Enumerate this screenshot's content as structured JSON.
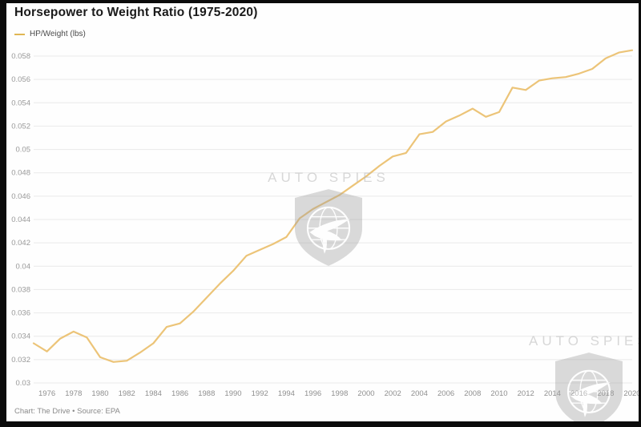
{
  "header": {
    "title": "Horsepower to Weight Ratio (1975-2020)",
    "legend": [
      {
        "label": "HP/Weight (lbs)",
        "color": "#e0b653"
      }
    ]
  },
  "chart_data": {
    "type": "line",
    "title": "Horsepower to Weight Ratio (1975-2020)",
    "xlabel": "",
    "ylabel": "",
    "grid": "horizontal",
    "legend_position": "top-left",
    "xlim": [
      1975,
      2020
    ],
    "ylim": [
      0.03,
      0.058
    ],
    "x_ticks": [
      1976,
      1978,
      1980,
      1982,
      1984,
      1986,
      1988,
      1990,
      1992,
      1994,
      1996,
      1998,
      2000,
      2002,
      2004,
      2006,
      2008,
      2010,
      2012,
      2014,
      2016,
      2018,
      2020
    ],
    "y_ticks": [
      {
        "label": "0.058",
        "value": 0.058
      },
      {
        "label": "0.056",
        "value": 0.056
      },
      {
        "label": "0.054",
        "value": 0.054
      },
      {
        "label": "0.052",
        "value": 0.052
      },
      {
        "label": "0.05",
        "value": 0.05
      },
      {
        "label": "0.048",
        "value": 0.048
      },
      {
        "label": "0.046",
        "value": 0.046
      },
      {
        "label": "0.044",
        "value": 0.044
      },
      {
        "label": "0.042",
        "value": 0.042
      },
      {
        "label": "0.04",
        "value": 0.04
      },
      {
        "label": "0.038",
        "value": 0.038
      },
      {
        "label": "0.036",
        "value": 0.036
      },
      {
        "label": "0.034",
        "value": 0.034
      },
      {
        "label": "0.032",
        "value": 0.032
      },
      {
        "label": "0.03",
        "value": 0.03
      }
    ],
    "series": [
      {
        "name": "HP/Weight (lbs)",
        "color": "#ecc478",
        "x": [
          1975,
          1976,
          1977,
          1978,
          1979,
          1980,
          1981,
          1982,
          1983,
          1984,
          1985,
          1986,
          1987,
          1988,
          1989,
          1990,
          1991,
          1992,
          1993,
          1994,
          1995,
          1996,
          1997,
          1998,
          1999,
          2000,
          2001,
          2002,
          2003,
          2004,
          2005,
          2006,
          2007,
          2008,
          2009,
          2010,
          2011,
          2012,
          2013,
          2014,
          2015,
          2016,
          2017,
          2018,
          2019,
          2020
        ],
        "values": [
          0.0334,
          0.0327,
          0.0338,
          0.0344,
          0.0339,
          0.0322,
          0.0318,
          0.0319,
          0.0326,
          0.0334,
          0.0348,
          0.0351,
          0.0361,
          0.0373,
          0.0385,
          0.0396,
          0.0409,
          0.0414,
          0.0419,
          0.0425,
          0.0441,
          0.0449,
          0.0455,
          0.0461,
          0.0469,
          0.0477,
          0.0486,
          0.0494,
          0.0497,
          0.0513,
          0.0515,
          0.0524,
          0.0529,
          0.0535,
          0.0528,
          0.0532,
          0.0553,
          0.0551,
          0.0559,
          0.0561,
          0.0562,
          0.0565,
          0.0569,
          0.0578,
          0.0583,
          0.0585
        ]
      }
    ]
  },
  "watermark": {
    "text": "AUTO SPIES"
  },
  "footer": {
    "credit": "Chart: The Drive • Source: EPA"
  }
}
